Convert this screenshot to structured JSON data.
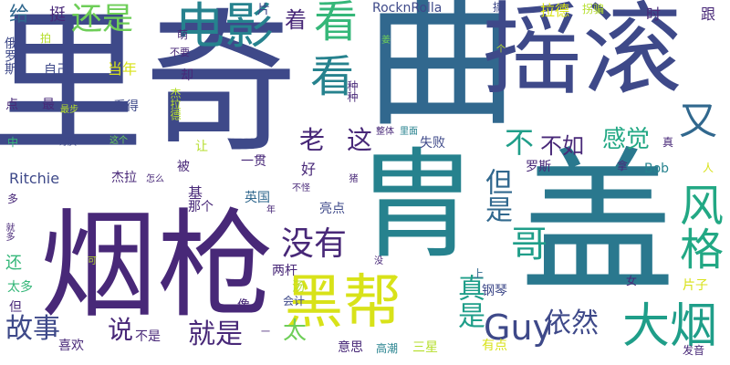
{
  "words": {
    "liqi": "里奇",
    "qu": "曲",
    "yaogun": "摇滚",
    "yanqiang": "烟枪",
    "zhou": "胄",
    "gai": "盖",
    "dianying": "电影",
    "kan1": "看",
    "kan2": "看",
    "haishi": "还是",
    "heibang": "黑帮",
    "guy": "Guy",
    "dayan": "大烟",
    "fengge": "风格",
    "you": "又",
    "zhenshi": "真是",
    "ge": "哥",
    "danshi": "但是",
    "meiyou": "没有",
    "bu": "不",
    "lao": "老",
    "zhe": "这",
    "gushi": "故事",
    "jiushi": "就是",
    "yiran": "依然",
    "ganjue": "感觉",
    "buru": "不如",
    "tai": "太",
    "shuo": "说",
    "gei": "给",
    "ting": "挺",
    "zhuo": "着",
    "pian": "片",
    "rocknrolla": "RocknRolla",
    "gao": "搞",
    "lade": "拉德",
    "guaipian": "拐骗",
    "shi": "时",
    "gen": "跟",
    "eluosi": "俄罗斯",
    "zijin": "自己",
    "dangnian": "当年",
    "pai": "拍",
    "meng": "萌",
    "buyao": "不要",
    "que": "却",
    "jielade": "杰拉德",
    "kande": "看得",
    "zuibu": "最步",
    "zui": "最",
    "dian": "点",
    "zhong": "中",
    "taoyan": "讨厌",
    "zhege": "这个",
    "zhengti": "整体",
    "limian": "里面",
    "shibai": "失败",
    "luosi": "罗斯",
    "zhen": "真",
    "na": "拿",
    "ren": "人",
    "bob": "Bob",
    "ritchie": "Ritchie",
    "jiela": "杰拉",
    "zenmele": "怎么",
    "bei": "被",
    "yiguan": "一贯",
    "hao": "好",
    "rang": "让",
    "ji": "基",
    "buguai": "不怪",
    "nage": "那个",
    "yingguo": "英国",
    "nian": "年",
    "liangdian": "亮点",
    "jiuduo": "就多",
    "duo": "多",
    "ke": "可",
    "mei": "没",
    "gangqin": "钢琴",
    "nv": "女",
    "pianzi": "片子",
    "huan": "还",
    "liangqian": "两杆",
    "tang": "汤",
    "shang": "上",
    "taiduo": "太多",
    "dan": "但",
    "xiang": "像",
    "kuaiji": "会计",
    "xihuan": "喜欢",
    "bushi": "不是",
    "yisi": "意思",
    "gaochao": "高潮",
    "sanxing": "三星",
    "youdian": "有点",
    "fayin": "发音",
    "zhongzhong": "种种",
    "ge2": "个",
    "zhu": "猪",
    "jiangsu": "姜",
    "yi": "一"
  }
}
